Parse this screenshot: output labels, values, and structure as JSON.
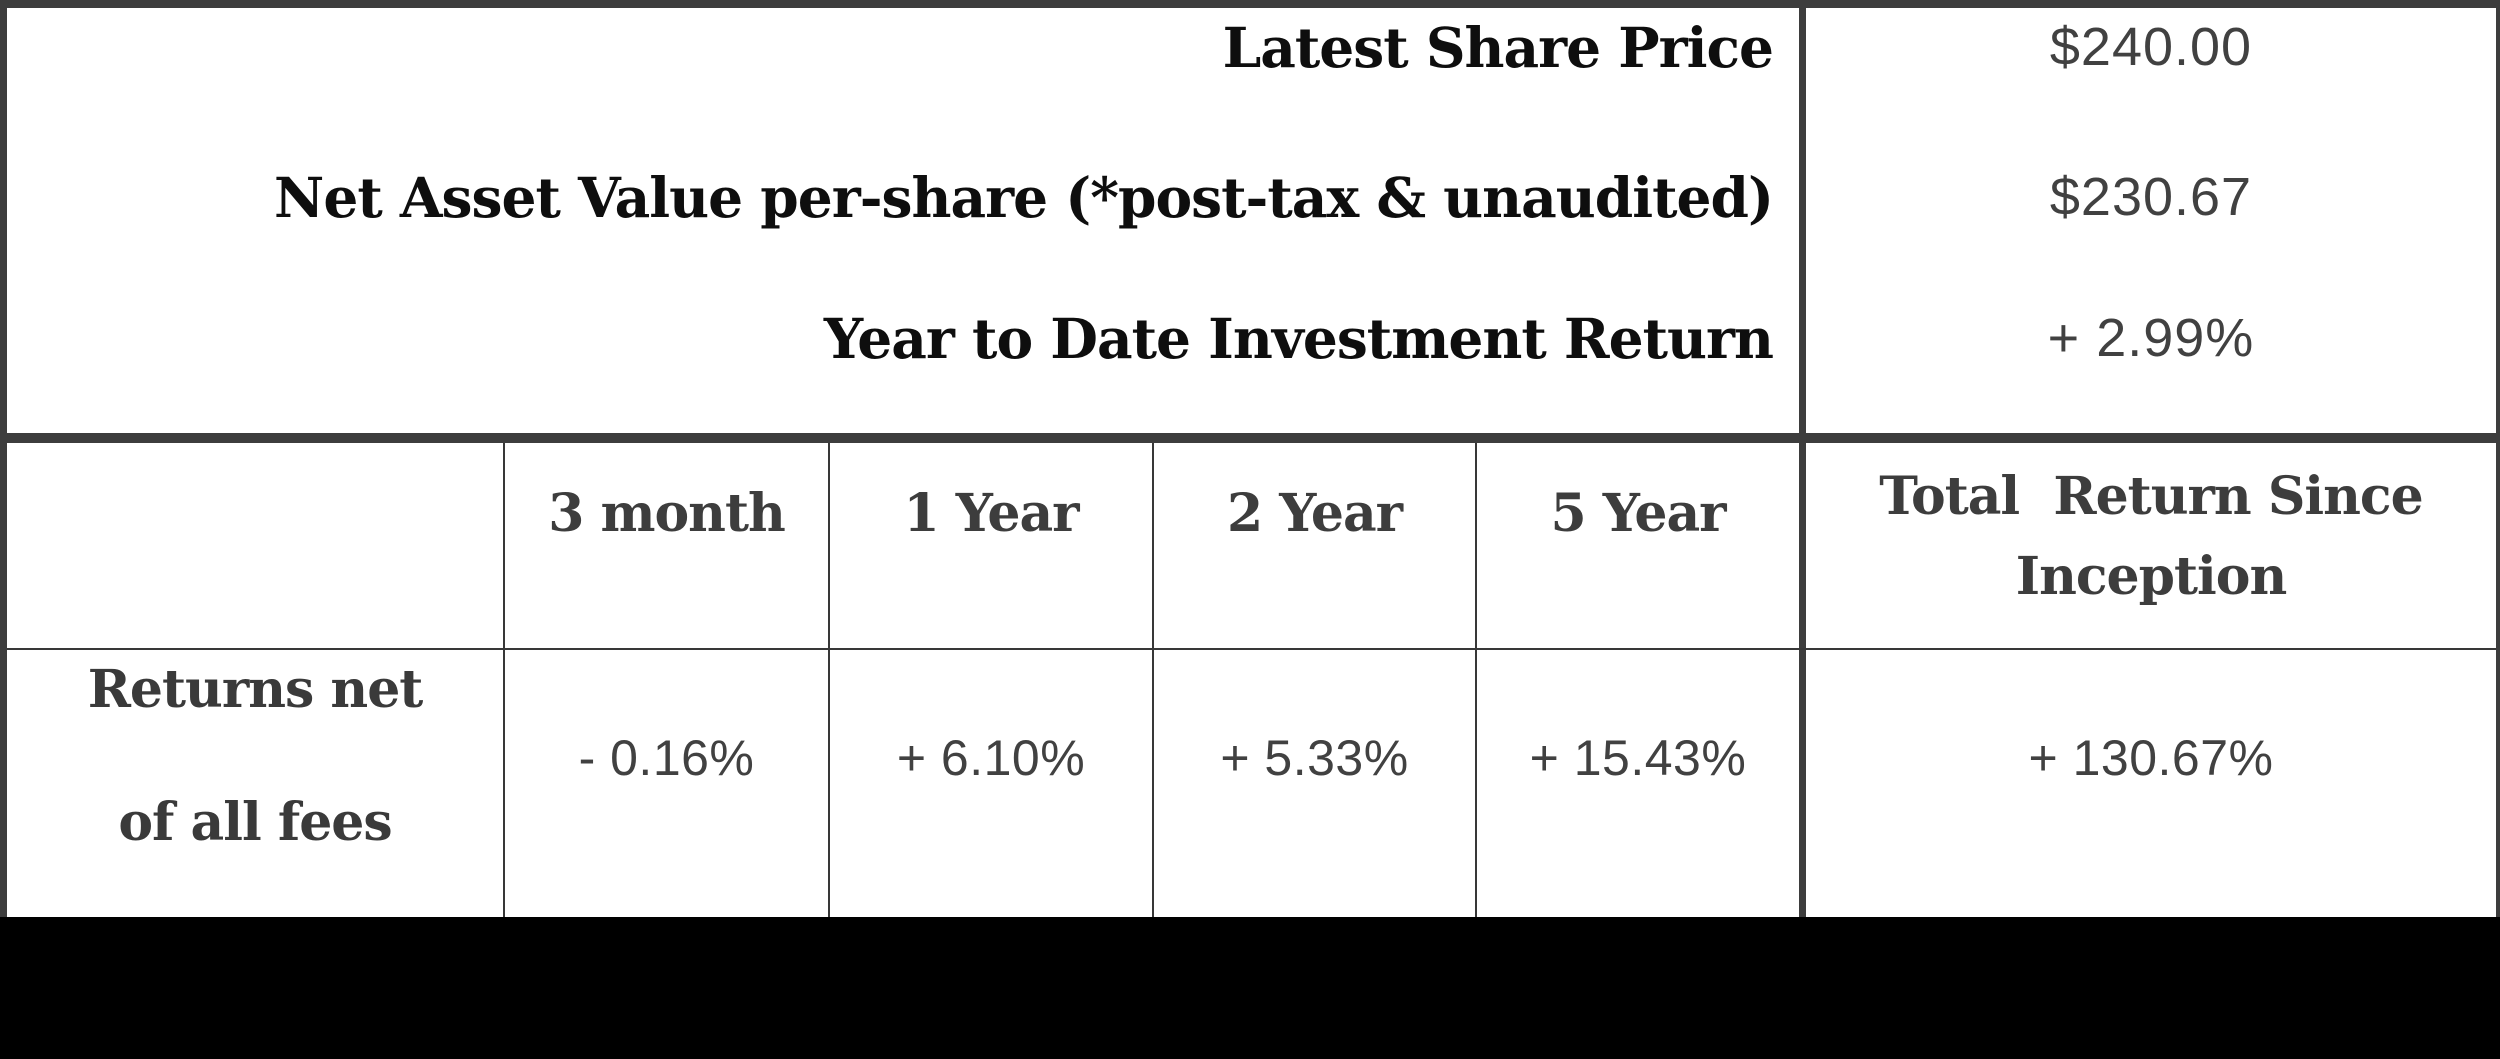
{
  "palette": {
    "border_gray": "#3d3d3d",
    "thin_line": "#383838",
    "label_black": "#0e0e0e",
    "table_text_gray": "#3d3d3d",
    "value_gray": "#414141",
    "footer_black": "#000000",
    "background": "#ffffff"
  },
  "summary": {
    "rows": [
      {
        "label": "Latest Share Price",
        "value": "$240.00"
      },
      {
        "label": "Net Asset Value per-share (*post-tax & unaudited)",
        "value": "$230.67"
      },
      {
        "label": "Year to Date Investment Return",
        "value": "+ 2.99%"
      }
    ]
  },
  "returns_table": {
    "row_header": {
      "line1": "Returns net",
      "line2": "of all fees"
    },
    "period_headers": [
      "3 month",
      "1 Year",
      "2 Year",
      "5 Year"
    ],
    "total_header": {
      "line1": "Total  Return Since",
      "line2": "Inception"
    },
    "values": [
      "- 0.16%",
      "+ 6.10%",
      "+ 5.33%",
      "+ 15.43%"
    ],
    "total_value": "+ 130.67%"
  }
}
